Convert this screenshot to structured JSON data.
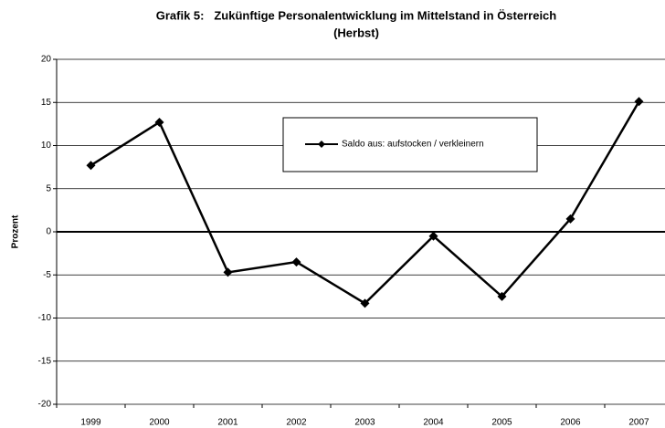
{
  "chart_data": {
    "type": "line",
    "title": [
      "Grafik 5:   Zukünftige Personalentwicklung im Mittelstand in Österreich",
      "(Herbst)"
    ],
    "y_label": "Prozent",
    "categories": [
      "1999",
      "2000",
      "2001",
      "2002",
      "2003",
      "2004",
      "2005",
      "2006",
      "2007"
    ],
    "series": [
      {
        "name": "Saldo aus: aufstocken / verkleinern",
        "color": "#000000",
        "values": [
          7.7,
          12.7,
          -4.7,
          -3.5,
          -8.3,
          -0.5,
          -7.5,
          1.5,
          15.1
        ]
      }
    ],
    "ylim": [
      -20,
      20
    ],
    "yticks": [
      -20,
      -15,
      -10,
      -5,
      0,
      5,
      10,
      15,
      20
    ],
    "grid": true
  }
}
